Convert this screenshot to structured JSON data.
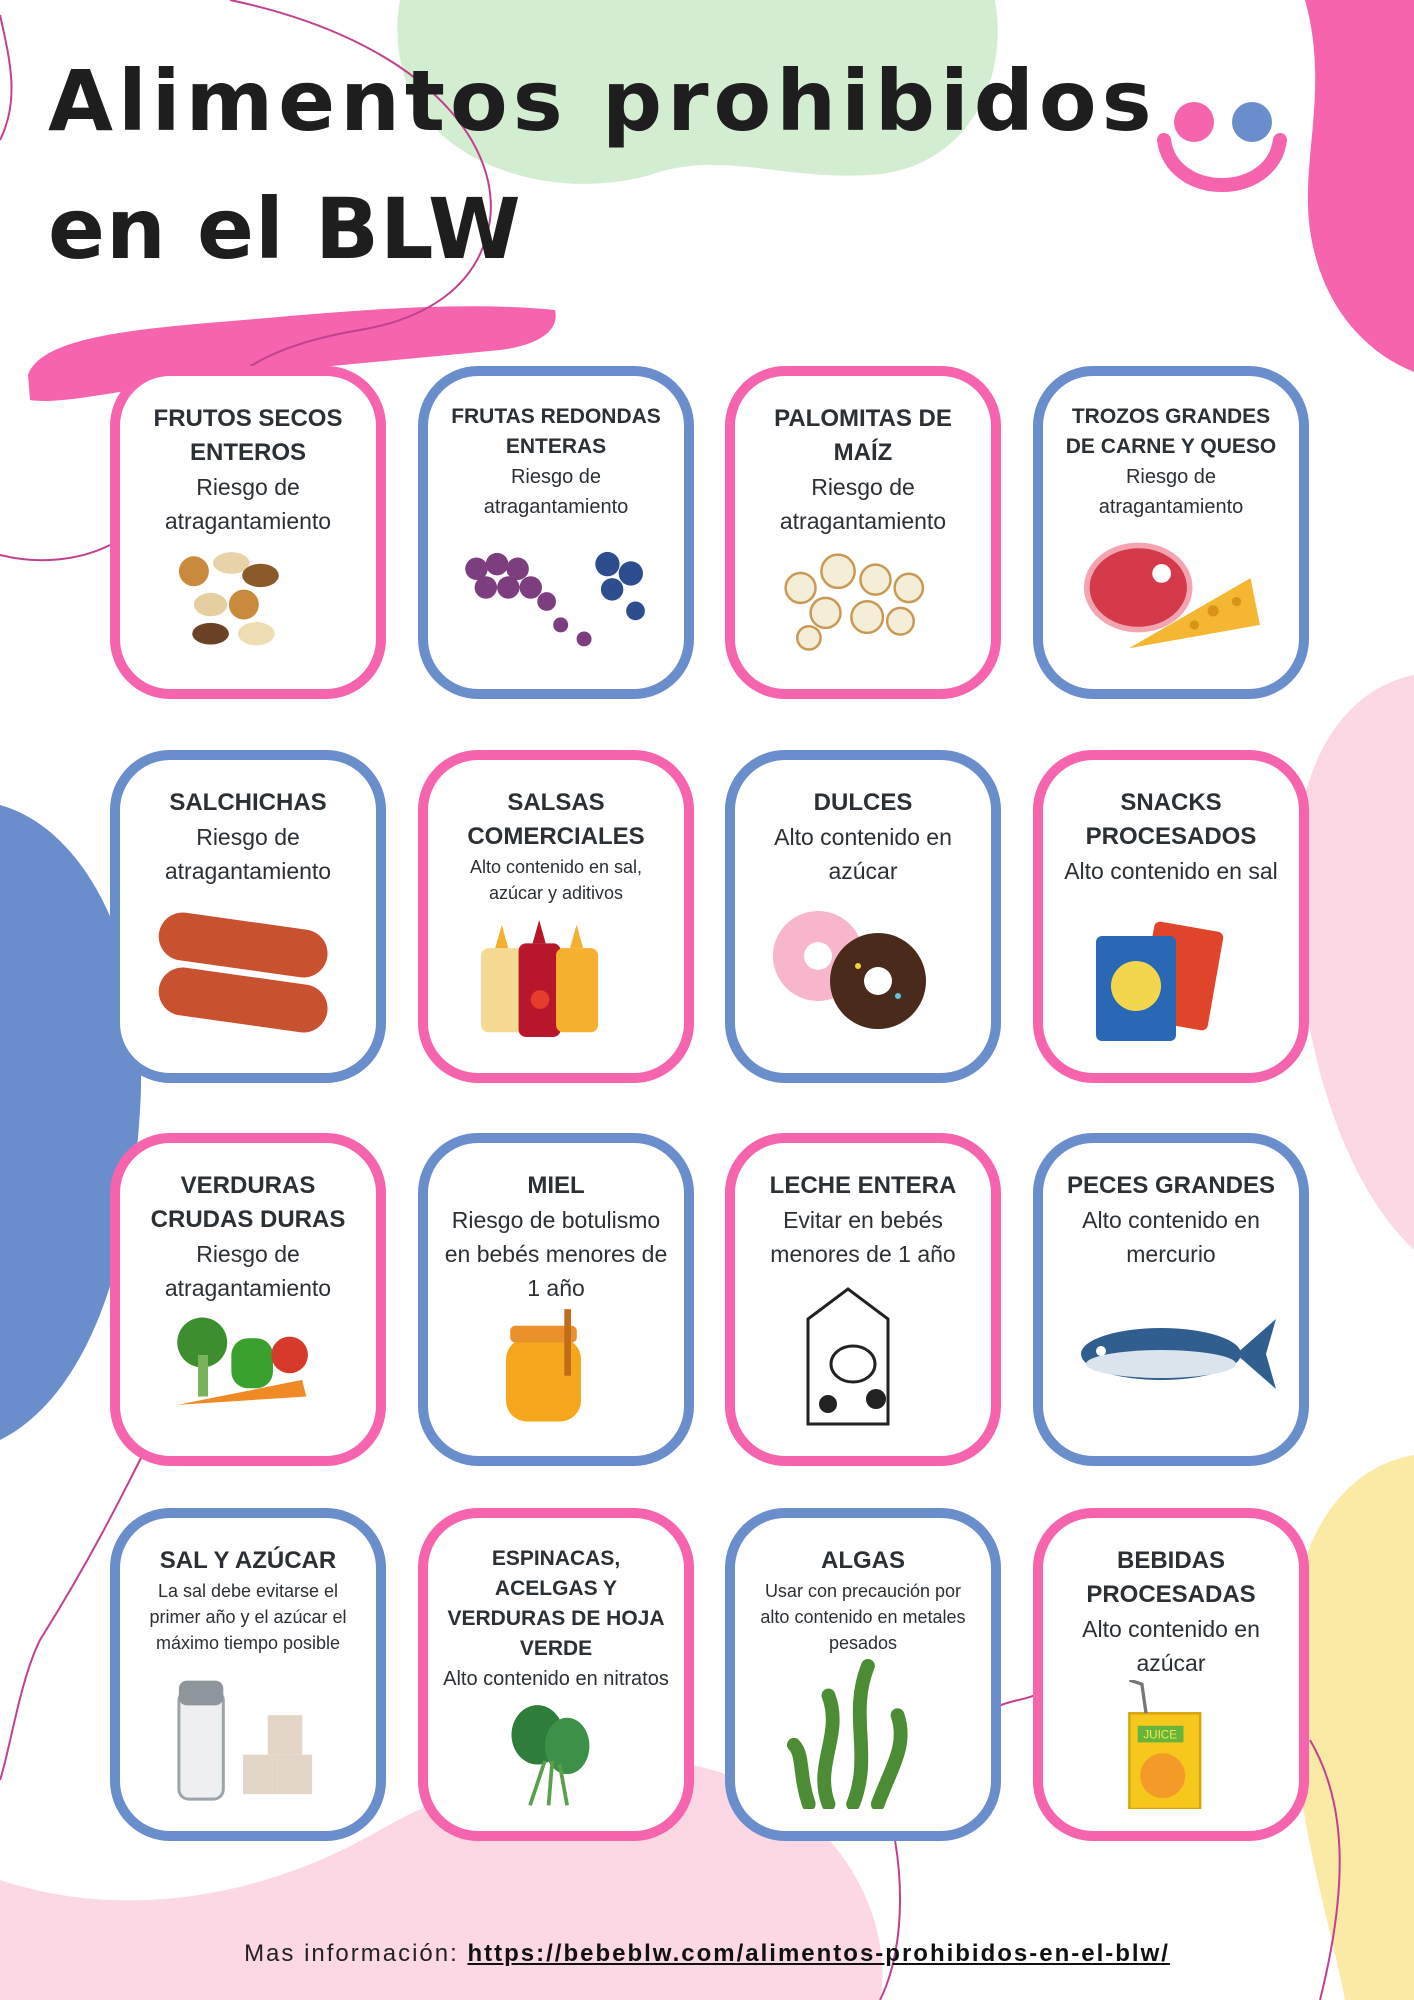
{
  "header": {
    "title_line1": "Alimentos prohibidos",
    "title_line2": "en el BLW"
  },
  "colors": {
    "pink": "#F564AC",
    "blue": "#6A8ECB",
    "green_blob": "#D2EDD0",
    "light_pink": "#FCD8E4",
    "yellow": "#FBE9A6"
  },
  "logo": {
    "icon": "smiley-face-icon"
  },
  "cards": [
    {
      "title": "FRUTOS SECOS ENTEROS",
      "subtitle": "Riesgo de atragantamiento",
      "border": "pink",
      "icon": "nuts-icon"
    },
    {
      "title": "FRUTAS REDONDAS ENTERAS",
      "subtitle": "Riesgo de atragantamiento",
      "border": "blue",
      "icon": "grapes-blueberries-icon",
      "size": "small"
    },
    {
      "title": "PALOMITAS DE MAÍZ",
      "subtitle": "Riesgo de atragantamiento",
      "border": "pink",
      "icon": "popcorn-icon"
    },
    {
      "title": "TROZOS GRANDES DE CARNE Y QUESO",
      "subtitle": "Riesgo de atragantamiento",
      "border": "blue",
      "icon": "meat-cheese-icon",
      "size": "small"
    },
    {
      "title": "SALCHICHAS",
      "subtitle": "Riesgo de atragantamiento",
      "border": "blue",
      "icon": "sausages-icon"
    },
    {
      "title": "SALSAS COMERCIALES",
      "subtitle": "Alto contenido en sal, azúcar y aditivos",
      "border": "pink",
      "icon": "sauce-bottles-icon",
      "size": "tiny"
    },
    {
      "title": "DULCES",
      "subtitle": "Alto contenido en azúcar",
      "border": "blue",
      "icon": "donuts-icon"
    },
    {
      "title": "SNACKS PROCESADOS",
      "subtitle": "Alto contenido en sal",
      "border": "pink",
      "icon": "chips-bags-icon"
    },
    {
      "title": "VERDURAS CRUDAS DURAS",
      "subtitle": "Riesgo de atragantamiento",
      "border": "pink",
      "icon": "vegetables-icon"
    },
    {
      "title": "MIEL",
      "subtitle": "Riesgo de botulismo en bebés menores de 1 año",
      "border": "blue",
      "icon": "honey-jar-icon"
    },
    {
      "title": "LECHE ENTERA",
      "subtitle": "Evitar en bebés menores de 1 año",
      "border": "pink",
      "icon": "milk-carton-icon"
    },
    {
      "title": "PECES GRANDES",
      "subtitle": "Alto contenido en mercurio",
      "border": "blue",
      "icon": "tuna-fish-icon"
    },
    {
      "title": "SAL Y AZÚCAR",
      "subtitle": "La sal debe evitarse el primer año y el azúcar el máximo tiempo posible",
      "border": "blue",
      "icon": "salt-sugar-icon",
      "size": "tiny"
    },
    {
      "title": "ESPINACAS, ACELGAS Y VERDURAS DE HOJA VERDE",
      "subtitle": "Alto contenido en nitratos",
      "border": "pink",
      "icon": "spinach-icon",
      "size": "small"
    },
    {
      "title": "ALGAS",
      "subtitle": "Usar con precaución por alto contenido en metales pesados",
      "border": "blue",
      "icon": "seaweed-icon",
      "size": "tiny"
    },
    {
      "title": "BEBIDAS PROCESADAS",
      "subtitle": "Alto contenido en azúcar",
      "border": "pink",
      "icon": "juice-box-icon",
      "juice_label": "JUICE"
    }
  ],
  "footer": {
    "label": "Mas información:",
    "link": "https://bebeblw.com/alimentos-prohibidos-en-el-blw/"
  }
}
